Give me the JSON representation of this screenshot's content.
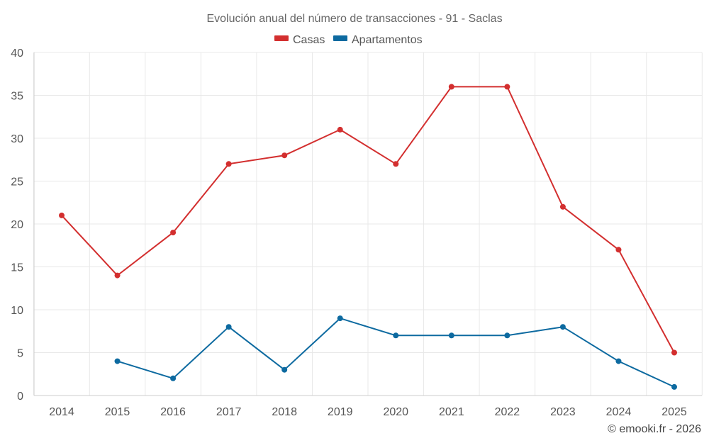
{
  "chart_data": {
    "type": "line",
    "title": "Evolución anual del número de transacciones - 91 - Saclas",
    "xlabel": "",
    "ylabel": "",
    "categories": [
      "2014",
      "2015",
      "2016",
      "2017",
      "2018",
      "2019",
      "2020",
      "2021",
      "2022",
      "2023",
      "2024",
      "2025"
    ],
    "ylim": [
      0,
      40
    ],
    "yticks": [
      0,
      5,
      10,
      15,
      20,
      25,
      30,
      35,
      40
    ],
    "grid": true,
    "legend_position": "top-center",
    "series": [
      {
        "name": "Casas",
        "color": "#d32f2f",
        "values": [
          21,
          14,
          19,
          27,
          28,
          31,
          27,
          36,
          36,
          22,
          17,
          5
        ]
      },
      {
        "name": "Apartamentos",
        "color": "#0d6aa0",
        "values": [
          null,
          4,
          2,
          8,
          3,
          9,
          7,
          7,
          7,
          8,
          4,
          1
        ]
      }
    ]
  },
  "credit": "© emooki.fr - 2026"
}
